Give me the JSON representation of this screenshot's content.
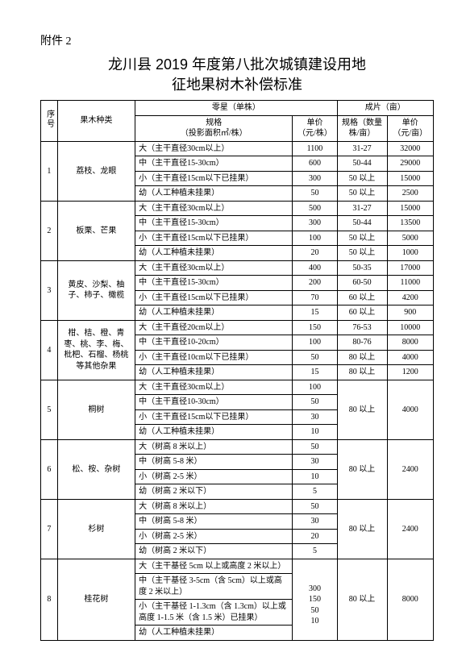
{
  "attachment_label": "附件 2",
  "title_line1": "龙川县 2019 年度第八批次城镇建设用地",
  "title_line2": "征地果树木补偿标准",
  "header": {
    "seq": "序号",
    "kind": "果木种类",
    "single_group": "零星（单株）",
    "batch_group": "成片（亩）",
    "spec": "规格",
    "spec_sub": "（投影面积㎡/株）",
    "price_single": "单价",
    "price_single_sub": "（元/株）",
    "batch_spec": "规格（数量株/亩）",
    "price_batch": "单价",
    "price_batch_sub": "（元/亩）"
  },
  "groups": [
    {
      "idx": "1",
      "kind": "荔枝、龙眼",
      "rows": [
        {
          "spec": "大（主干直径30cm以上）",
          "p1": "1100",
          "p2": "31-27",
          "p3": "32000"
        },
        {
          "spec": "中（主干直径15-30cm）",
          "p1": "600",
          "p2": "50-44",
          "p3": "29000"
        },
        {
          "spec": "小（主干直径15cm以下已挂果）",
          "p1": "300",
          "p2": "50 以上",
          "p3": "15000"
        },
        {
          "spec": "幼（人工种植未挂果）",
          "p1": "50",
          "p2": "50 以上",
          "p3": "2500"
        }
      ]
    },
    {
      "idx": "2",
      "kind": "板栗、芒果",
      "rows": [
        {
          "spec": "大（主干直径30cm以上）",
          "p1": "500",
          "p2": "31-27",
          "p3": "15000"
        },
        {
          "spec": "中（主干直径15-30cm）",
          "p1": "300",
          "p2": "50-44",
          "p3": "13500"
        },
        {
          "spec": "小（主干直径15cm以下已挂果）",
          "p1": "100",
          "p2": "50 以上",
          "p3": "5000"
        },
        {
          "spec": "幼（人工种植未挂果）",
          "p1": "20",
          "p2": "50 以上",
          "p3": "1000"
        }
      ]
    },
    {
      "idx": "3",
      "kind": "黄皮、沙梨、柚子、柿子、橄榄",
      "rows": [
        {
          "spec": "大（主干直径30cm以上）",
          "p1": "400",
          "p2": "50-35",
          "p3": "17000"
        },
        {
          "spec": "中（主干直径15-30cm）",
          "p1": "200",
          "p2": "60-50",
          "p3": "11000"
        },
        {
          "spec": "小（主干直径15cm以下已挂果）",
          "p1": "70",
          "p2": "60 以上",
          "p3": "4200"
        },
        {
          "spec": "幼（人工种植未挂果）",
          "p1": "15",
          "p2": "60 以上",
          "p3": "900"
        }
      ]
    },
    {
      "idx": "4",
      "kind": "柑、桔、橙、青枣、桃、李、梅、枇杷、石榴、杨桃等其他杂果",
      "rows": [
        {
          "spec": "大（主干直径20cm以上）",
          "p1": "150",
          "p2": "76-53",
          "p3": "10000"
        },
        {
          "spec": "中（主干直径10-20cm）",
          "p1": "100",
          "p2": "80-76",
          "p3": "8000"
        },
        {
          "spec": "小（主干直径10cm以下已挂果）",
          "p1": "50",
          "p2": "80 以上",
          "p3": "4000"
        },
        {
          "spec": "幼（人工种植未挂果）",
          "p1": "15",
          "p2": "80 以上",
          "p3": "1200"
        }
      ]
    },
    {
      "idx": "5",
      "kind": "桐树",
      "merged_p2": "80 以上",
      "merged_p3": "4000",
      "rows": [
        {
          "spec": "大（主干直径30cm以上）",
          "p1": "100"
        },
        {
          "spec": "中（主干直径10-30cm）",
          "p1": "50"
        },
        {
          "spec": "小（主干直径15cm以下已挂果）",
          "p1": "30"
        },
        {
          "spec": "幼（人工种植未挂果）",
          "p1": "10"
        }
      ]
    },
    {
      "idx": "6",
      "kind": "松、桉、杂树",
      "merged_p2": "80 以上",
      "merged_p3": "2400",
      "rows": [
        {
          "spec": "大（树高 8 米以上）",
          "p1": "50"
        },
        {
          "spec": "中（树高 5-8 米）",
          "p1": "30"
        },
        {
          "spec": "小（树高 2-5 米）",
          "p1": "10"
        },
        {
          "spec": "幼（树高 2 米以下）",
          "p1": "5"
        }
      ]
    },
    {
      "idx": "7",
      "kind": "杉树",
      "merged_p2": "80 以上",
      "merged_p3": "2400",
      "rows": [
        {
          "spec": "大（树高 8 米以上）",
          "p1": "50"
        },
        {
          "spec": "中（树高 5-8 米）",
          "p1": "30"
        },
        {
          "spec": "小（树高 2-5 米）",
          "p1": "20"
        },
        {
          "spec": "幼（树高 2 米以下）",
          "p1": "5"
        }
      ]
    },
    {
      "idx": "8",
      "kind": "桂花树",
      "merged_p2": "80 以上",
      "merged_p3": "8000",
      "rows": [
        {
          "spec": "大（主干基径 5cm 以上或高度 2 米以上）",
          "p1": ""
        },
        {
          "spec": "中（主干基径 3-5cm（含 5cm）以上或高度 2 米以上）",
          "p1": "300"
        },
        {
          "spec": "小（主干基径 1-1.3cm（含 1.3cm）以上或高度 1-1.5 米（含 1.5 米）已挂果）",
          "p1": "150\n50\n10"
        },
        {
          "spec": "幼（人工种植未挂果）",
          "p1": ""
        }
      ]
    }
  ]
}
